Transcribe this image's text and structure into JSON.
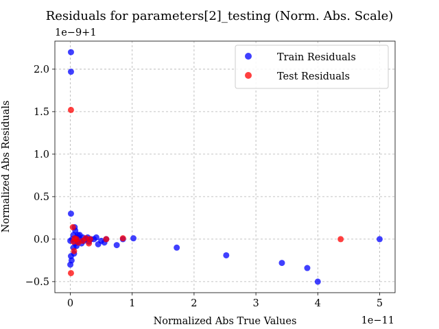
{
  "chart_data": {
    "type": "scatter",
    "title": "Residuals for parameters[2]_testing (Norm. Abs. Scale)",
    "xlabel": "Normalized Abs True Values",
    "ylabel": "Normalized Abs Residuals",
    "x_offset_text": "1e−11",
    "y_offset_text": "1e−9+1",
    "xlim": [
      -0.25,
      5.25
    ],
    "ylim": [
      -0.63,
      2.33
    ],
    "x_ticks": [
      0,
      1,
      2,
      3,
      4,
      5
    ],
    "x_tick_labels": [
      "0",
      "1",
      "2",
      "3",
      "4",
      "5"
    ],
    "y_ticks": [
      -0.5,
      0.0,
      0.5,
      1.0,
      1.5,
      2.0
    ],
    "y_tick_labels": [
      "−0.5",
      "0.0",
      "0.5",
      "1.0",
      "1.5",
      "2.0"
    ],
    "grid": true,
    "legend_position": "top-right",
    "series": [
      {
        "name": "Train Residuals",
        "color": "#0000ff",
        "points": [
          [
            0.01,
            2.2
          ],
          [
            0.01,
            1.97
          ],
          [
            0.01,
            0.3
          ],
          [
            0.0,
            -0.3
          ],
          [
            0.02,
            -0.25
          ],
          [
            0.01,
            -0.2
          ],
          [
            0.03,
            0.0
          ],
          [
            0.0,
            -0.02
          ],
          [
            0.05,
            0.05
          ],
          [
            0.05,
            -0.1
          ],
          [
            0.06,
            -0.17
          ],
          [
            0.07,
            0.14
          ],
          [
            0.08,
            0.1
          ],
          [
            0.08,
            -0.05
          ],
          [
            0.1,
            0.02
          ],
          [
            0.1,
            -0.08
          ],
          [
            0.12,
            0.05
          ],
          [
            0.12,
            -0.03
          ],
          [
            0.15,
            0.0
          ],
          [
            0.15,
            0.05
          ],
          [
            0.18,
            -0.05
          ],
          [
            0.2,
            0.02
          ],
          [
            0.22,
            -0.02
          ],
          [
            0.25,
            0.0
          ],
          [
            0.28,
            0.02
          ],
          [
            0.3,
            -0.03
          ],
          [
            0.33,
            0.0
          ],
          [
            0.38,
            0.0
          ],
          [
            0.42,
            0.02
          ],
          [
            0.45,
            -0.06
          ],
          [
            0.5,
            -0.02
          ],
          [
            0.55,
            -0.04
          ],
          [
            0.58,
            0.0
          ],
          [
            0.75,
            -0.07
          ],
          [
            0.85,
            0.0
          ],
          [
            1.02,
            0.01
          ],
          [
            1.72,
            -0.1
          ],
          [
            2.52,
            -0.19
          ],
          [
            3.42,
            -0.28
          ],
          [
            3.83,
            -0.34
          ],
          [
            4.0,
            -0.5
          ],
          [
            5.0,
            0.0
          ]
        ]
      },
      {
        "name": "Test Residuals",
        "color": "#ff0000",
        "points": [
          [
            0.01,
            1.52
          ],
          [
            0.01,
            -0.4
          ],
          [
            0.04,
            0.14
          ],
          [
            0.05,
            -0.03
          ],
          [
            0.06,
            -0.14
          ],
          [
            0.07,
            0.01
          ],
          [
            0.1,
            0.0
          ],
          [
            0.13,
            -0.04
          ],
          [
            0.2,
            -0.02
          ],
          [
            0.25,
            0.01
          ],
          [
            0.3,
            -0.05
          ],
          [
            0.32,
            0.0
          ],
          [
            0.58,
            0.0
          ],
          [
            0.85,
            0.01
          ],
          [
            4.37,
            0.0
          ]
        ]
      }
    ]
  }
}
